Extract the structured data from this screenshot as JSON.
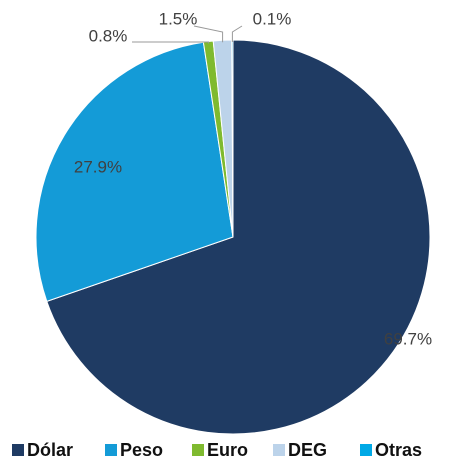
{
  "chart_data": {
    "type": "pie",
    "categories": [
      "Dólar",
      "Peso",
      "Euro",
      "DEG",
      "Otras"
    ],
    "values": [
      69.7,
      27.9,
      0.8,
      1.5,
      0.1
    ],
    "value_labels": [
      "69.7%",
      "27.9%",
      "0.8%",
      "1.5%",
      "0.1%"
    ],
    "colors": [
      "#1f3b63",
      "#149bd7",
      "#7fba2f",
      "#bcd3ea",
      "#00a9e6"
    ],
    "legend": "bottom"
  }
}
